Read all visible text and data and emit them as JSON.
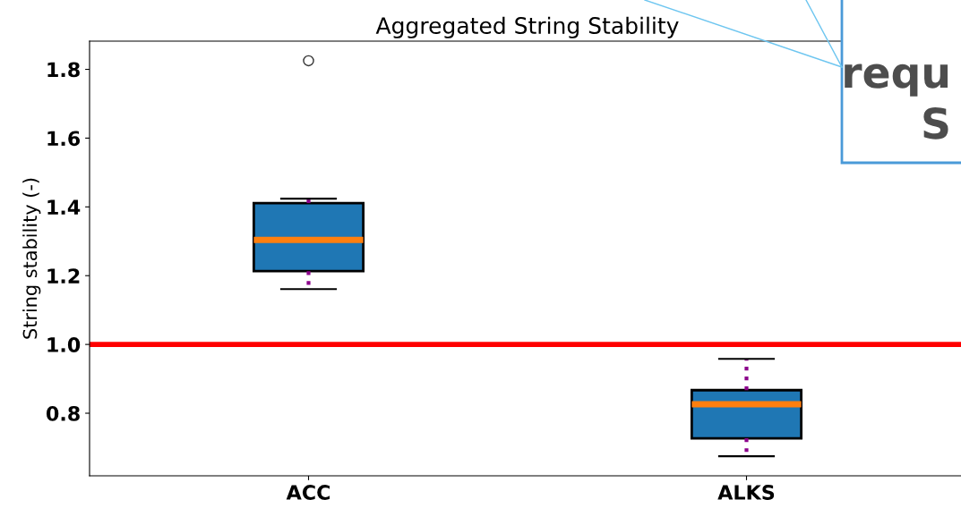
{
  "chart_data": {
    "type": "box",
    "title": "Aggregated String Stability",
    "ylabel": "String stability (-)",
    "categories": [
      "ACC",
      "ALKS"
    ],
    "series": [
      {
        "color": "#1f77b4",
        "boxes": [
          {
            "low": 1.161,
            "q1": 1.213,
            "median": 1.304,
            "q3": 1.411,
            "high": 1.424,
            "outliers": [
              1.825
            ]
          },
          {
            "low": 0.675,
            "q1": 0.727,
            "median": 0.826,
            "q3": 0.867,
            "high": 0.958
          }
        ]
      }
    ],
    "ylim": [
      0.618,
      1.882
    ],
    "yticks": [
      0.8,
      {
        "value": 1,
        "label": "1.0"
      },
      1.2,
      1.4,
      1.6,
      1.8
    ],
    "ref_lines": [
      {
        "axis": "y",
        "value": 1.0,
        "color": "#ff0000"
      }
    ],
    "annotations": [
      "requ",
      "S"
    ],
    "grid": false
  }
}
